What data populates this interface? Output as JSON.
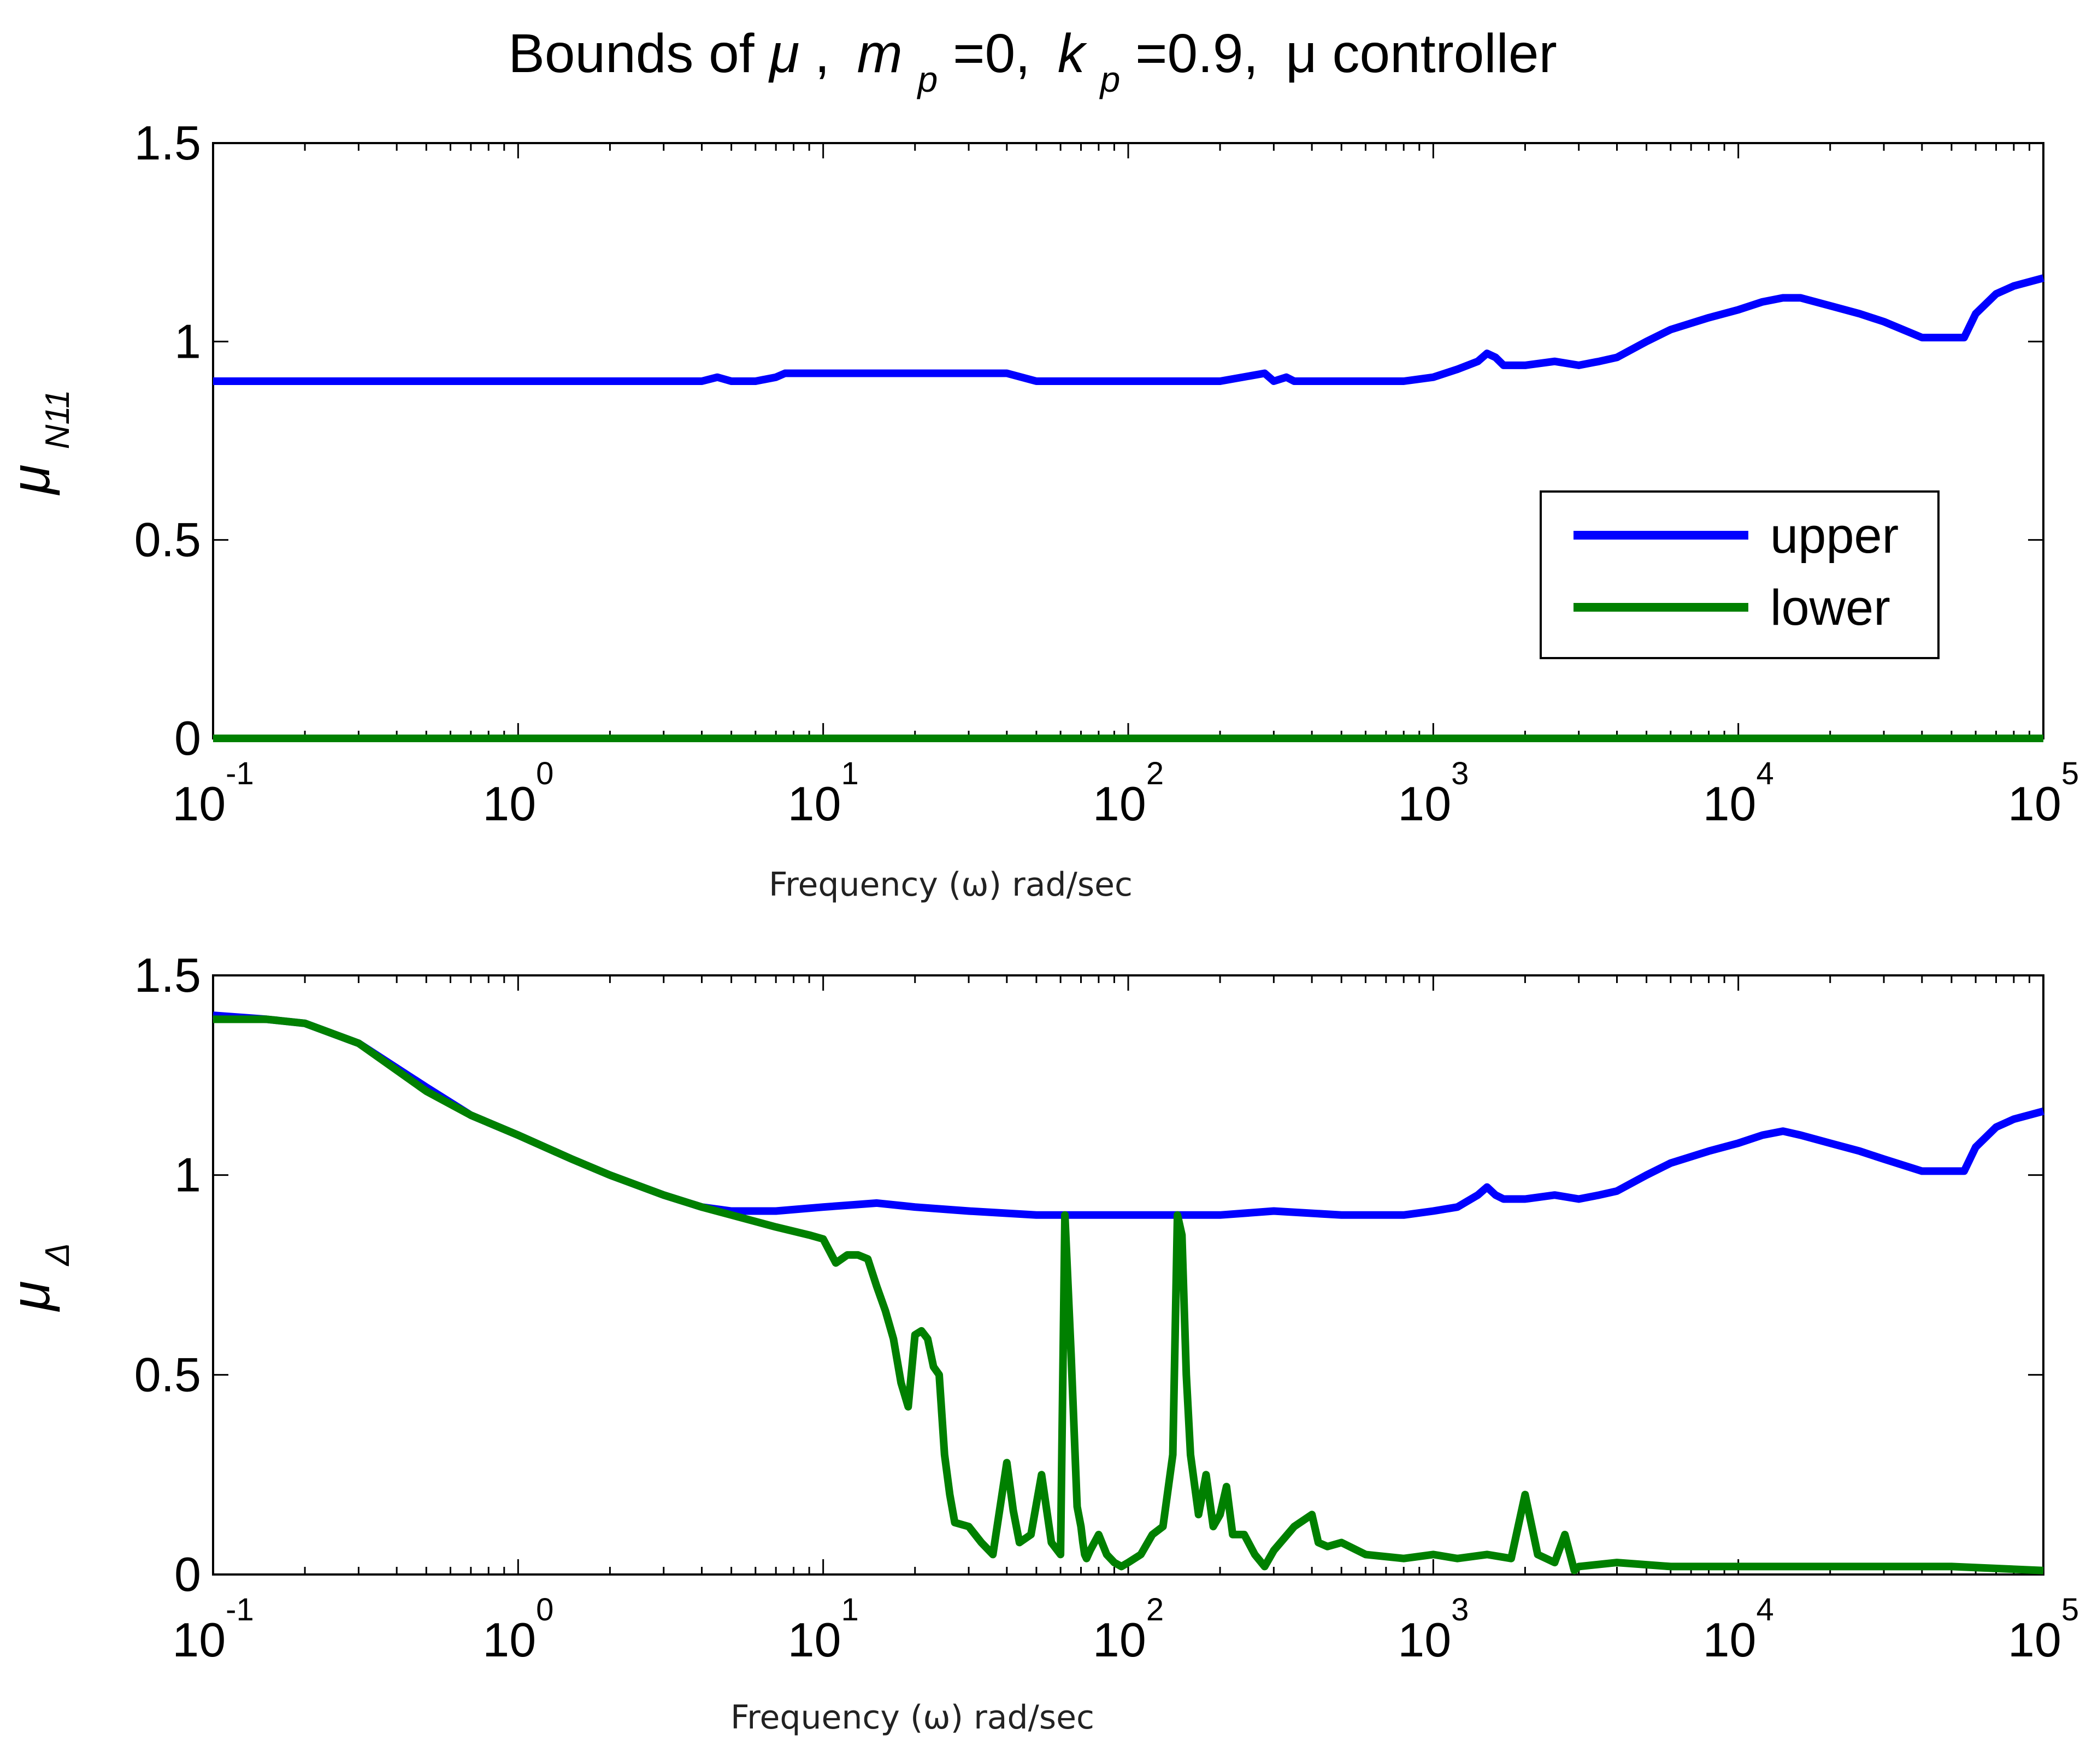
{
  "chart_data": {
    "title": {
      "prefix": "Bounds of",
      "mu": "μ",
      "sep1": ",",
      "m": "m",
      "m_sub": "p",
      "m_val": "=0,",
      "k": "k",
      "k_sub": "p",
      "k_val": "=0.9,",
      "suffix": "μ controller"
    },
    "colors": {
      "upper": "#0000ff",
      "lower": "#008000"
    },
    "xscale": "log",
    "xlim": [
      0.1,
      100000
    ],
    "x_ticks": [
      {
        "base": "10",
        "exp": "-1",
        "value": 0.1
      },
      {
        "base": "10",
        "exp": "0",
        "value": 1
      },
      {
        "base": "10",
        "exp": "1",
        "value": 10
      },
      {
        "base": "10",
        "exp": "2",
        "value": 100
      },
      {
        "base": "10",
        "exp": "3",
        "value": 1000
      },
      {
        "base": "10",
        "exp": "4",
        "value": 10000
      },
      {
        "base": "10",
        "exp": "5",
        "value": 100000
      }
    ],
    "y_ticks": [
      {
        "label": "0",
        "value": 0
      },
      {
        "label": "0.5",
        "value": 0.5
      },
      {
        "label": "1",
        "value": 1
      },
      {
        "label": "1.5",
        "value": 1.5
      }
    ],
    "panels": [
      {
        "type": "line",
        "xlabel": "Frequency (ω) rad/sec",
        "ylabel": "μ",
        "ylabel_sub": "N11",
        "ylim": [
          0,
          1.5
        ],
        "legend": {
          "position": "right",
          "entries": [
            "upper",
            "lower"
          ]
        },
        "series": [
          {
            "name": "upper",
            "x": [
              0.1,
              1,
              4,
              4.5,
              5,
              6,
              7,
              7.5,
              10,
              12,
              20,
              30,
              40,
              50,
              100,
              200,
              280,
              300,
              330,
              350,
              400,
              600,
              800,
              1000,
              1200,
              1400,
              1500,
              1600,
              1700,
              2000,
              2500,
              3000,
              3500,
              4000,
              5000,
              6000,
              8000,
              10000,
              12000,
              14000,
              16000,
              20000,
              25000,
              30000,
              40000,
              50000,
              55000,
              60000,
              70000,
              80000,
              100000
            ],
            "y": [
              0.9,
              0.9,
              0.9,
              0.91,
              0.9,
              0.9,
              0.91,
              0.92,
              0.92,
              0.92,
              0.92,
              0.92,
              0.92,
              0.9,
              0.9,
              0.9,
              0.92,
              0.9,
              0.91,
              0.9,
              0.9,
              0.9,
              0.9,
              0.91,
              0.93,
              0.95,
              0.97,
              0.96,
              0.94,
              0.94,
              0.95,
              0.94,
              0.95,
              0.96,
              1.0,
              1.03,
              1.06,
              1.08,
              1.1,
              1.11,
              1.11,
              1.09,
              1.07,
              1.05,
              1.01,
              1.01,
              1.01,
              1.07,
              1.12,
              1.14,
              1.16
            ]
          },
          {
            "name": "lower",
            "x": [
              0.1,
              100000
            ],
            "y": [
              0,
              0
            ]
          }
        ]
      },
      {
        "type": "line",
        "xlabel": "Frequency (ω) rad/sec",
        "ylabel": "μ",
        "ylabel_sub": "Δ",
        "ylim": [
          0,
          1.5
        ],
        "series": [
          {
            "name": "upper",
            "x": [
              0.1,
              0.15,
              0.2,
              0.3,
              0.5,
              0.7,
              1,
              1.5,
              2,
              3,
              4,
              5,
              7,
              10,
              15,
              20,
              30,
              50,
              80,
              100,
              150,
              200,
              300,
              500,
              800,
              1000,
              1200,
              1400,
              1500,
              1600,
              1700,
              2000,
              2500,
              3000,
              3500,
              4000,
              5000,
              6000,
              8000,
              10000,
              12000,
              14000,
              16000,
              20000,
              25000,
              30000,
              40000,
              50000,
              55000,
              60000,
              70000,
              80000,
              100000
            ],
            "y": [
              1.4,
              1.39,
              1.38,
              1.33,
              1.22,
              1.15,
              1.1,
              1.04,
              1.0,
              0.95,
              0.92,
              0.91,
              0.91,
              0.92,
              0.93,
              0.92,
              0.91,
              0.9,
              0.9,
              0.9,
              0.9,
              0.9,
              0.91,
              0.9,
              0.9,
              0.91,
              0.92,
              0.95,
              0.97,
              0.95,
              0.94,
              0.94,
              0.95,
              0.94,
              0.95,
              0.96,
              1.0,
              1.03,
              1.06,
              1.08,
              1.1,
              1.11,
              1.1,
              1.08,
              1.06,
              1.04,
              1.01,
              1.01,
              1.01,
              1.07,
              1.12,
              1.14,
              1.16
            ]
          },
          {
            "name": "lower",
            "x": [
              0.1,
              0.15,
              0.2,
              0.3,
              0.5,
              0.7,
              1,
              1.5,
              2,
              3,
              4,
              5,
              7,
              9,
              10,
              11,
              12,
              13,
              14,
              15,
              16,
              17,
              18,
              19,
              20,
              21,
              22,
              23,
              24,
              25,
              26,
              27,
              30,
              33,
              36,
              40,
              42,
              44,
              48,
              52,
              56,
              60,
              62,
              65,
              68,
              70,
              71,
              72,
              73,
              75,
              80,
              85,
              90,
              95,
              100,
              110,
              120,
              130,
              140,
              145,
              150,
              155,
              160,
              170,
              180,
              190,
              200,
              210,
              220,
              240,
              260,
              280,
              300,
              350,
              400,
              420,
              450,
              500,
              600,
              800,
              1000,
              1200,
              1500,
              1800,
              2000,
              2200,
              2500,
              2700,
              2900,
              3000,
              4000,
              6000,
              10000,
              20000,
              50000,
              100000
            ],
            "y": [
              1.39,
              1.39,
              1.38,
              1.33,
              1.21,
              1.15,
              1.1,
              1.04,
              1.0,
              0.95,
              0.92,
              0.9,
              0.87,
              0.85,
              0.84,
              0.78,
              0.8,
              0.8,
              0.79,
              0.72,
              0.66,
              0.59,
              0.48,
              0.42,
              0.6,
              0.61,
              0.59,
              0.52,
              0.5,
              0.3,
              0.2,
              0.13,
              0.12,
              0.08,
              0.05,
              0.28,
              0.16,
              0.08,
              0.1,
              0.25,
              0.08,
              0.05,
              0.9,
              0.55,
              0.17,
              0.12,
              0.08,
              0.05,
              0.04,
              0.06,
              0.1,
              0.05,
              0.03,
              0.02,
              0.03,
              0.05,
              0.1,
              0.12,
              0.3,
              0.9,
              0.85,
              0.5,
              0.3,
              0.15,
              0.25,
              0.12,
              0.15,
              0.22,
              0.1,
              0.1,
              0.05,
              0.02,
              0.06,
              0.12,
              0.15,
              0.08,
              0.07,
              0.08,
              0.05,
              0.04,
              0.05,
              0.04,
              0.05,
              0.04,
              0.2,
              0.05,
              0.03,
              0.1,
              0.01,
              0.02,
              0.03,
              0.02,
              0.02,
              0.02,
              0.02,
              0.01
            ]
          }
        ]
      }
    ]
  }
}
